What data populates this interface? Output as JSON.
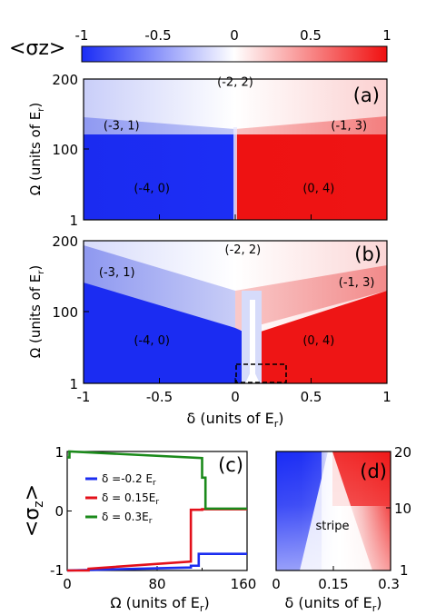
{
  "figure": {
    "colorbar": {
      "label": "<σz>",
      "ticks": [
        "-1",
        "-0.5",
        "0",
        "0.5",
        "1"
      ],
      "range": [
        -1,
        1
      ],
      "colors": {
        "neg": "#1a2cf5",
        "mid": "#ffffff",
        "pos": "#f01010"
      }
    },
    "panels": {
      "a": {
        "tag": "(a)",
        "ylabel": "Ω (units of E",
        "ylabel_sub": "r",
        "ylabel_end": ")",
        "ytick_labels": [
          "200",
          "100",
          "1"
        ]
      },
      "b": {
        "tag": "(b)",
        "ylabel": "Ω (units of E",
        "ylabel_sub": "r",
        "ylabel_end": ")",
        "ytick_labels": [
          "200",
          "100",
          "1"
        ],
        "xlabel": "δ (units of E",
        "xlabel_sub": "r",
        "xlabel_end": ")",
        "xtick_labels": [
          "-1",
          "-0.5",
          "0",
          "0.5",
          "1"
        ]
      },
      "c": {
        "tag": "(c)",
        "ylabel": "<σ",
        "ylabel_sub": "z",
        "ylabel_end": ">",
        "xlabel": "Ω (units of E",
        "xlabel_sub": "r",
        "xlabel_end": ")",
        "xtick_labels": [
          "0",
          "80",
          "160"
        ],
        "ytick_labels": [
          "1",
          "0",
          "-1"
        ]
      },
      "d": {
        "tag": "(d)",
        "region_label": "stripe",
        "xlabel": "δ (units of E",
        "xlabel_sub": "r",
        "xlabel_end": ")",
        "xtick_labels": [
          "0",
          "0.15",
          "0.3"
        ],
        "ytick_labels": [
          "20",
          "10",
          "1"
        ]
      }
    }
  },
  "chart_data": [
    {
      "panel": "a",
      "type": "heatmap",
      "x_range": [
        -1,
        1
      ],
      "y_ticks": [
        1,
        100,
        200
      ],
      "y_range": [
        1,
        200
      ],
      "regions": [
        {
          "label": "(-2, 2)",
          "delta": 0.0,
          "omega": 190,
          "value": 0.0
        },
        {
          "label": "(-3, 1)",
          "delta": -0.75,
          "omega": 128,
          "value": -0.3
        },
        {
          "label": "(-1, 3)",
          "delta": 0.75,
          "omega": 128,
          "value": 0.3
        },
        {
          "label": "(-4, 0)",
          "delta": -0.55,
          "omega": 40,
          "value": -1
        },
        {
          "label": "(0, 4)",
          "delta": 0.55,
          "omega": 40,
          "value": 1
        }
      ]
    },
    {
      "panel": "b",
      "type": "heatmap",
      "x_range": [
        -1,
        1
      ],
      "y_ticks": [
        1,
        100,
        200
      ],
      "y_range": [
        1,
        200
      ],
      "regions": [
        {
          "label": "(-2, 2)",
          "delta": 0.05,
          "omega": 182,
          "value": 0.0
        },
        {
          "label": "(-3, 1)",
          "delta": -0.78,
          "omega": 150,
          "value": -0.3
        },
        {
          "label": "(-1, 3)",
          "delta": 0.8,
          "omega": 136,
          "value": 0.3
        },
        {
          "label": "(-4, 0)",
          "delta": -0.55,
          "omega": 55,
          "value": -1
        },
        {
          "label": "(0, 4)",
          "delta": 0.55,
          "omega": 55,
          "value": 1
        }
      ],
      "highlight_box": {
        "delta": [
          0.0,
          0.33
        ],
        "omega": [
          1,
          20
        ]
      }
    },
    {
      "panel": "c",
      "type": "line",
      "x_range": [
        0,
        160
      ],
      "y_range": [
        -1,
        1
      ],
      "series": [
        {
          "name": "δ =-0.2 E",
          "name_sub": "r",
          "color": "#1b2df0",
          "x": [
            0,
            110,
            110,
            117,
            117,
            160
          ],
          "y": [
            -1.0,
            -0.95,
            -0.92,
            -0.92,
            -0.72,
            -0.72
          ]
        },
        {
          "name": "δ = 0.15E",
          "name_sub": "r",
          "color": "#e3101a",
          "x": [
            0,
            19,
            19,
            110,
            110,
            120,
            120,
            160
          ],
          "y": [
            -1.0,
            -1.0,
            -0.97,
            -0.85,
            0.02,
            0.02,
            0.03,
            0.03
          ]
        },
        {
          "name": "δ = 0.3E",
          "name_sub": "r",
          "color": "#1b8a1b",
          "x": [
            0,
            2,
            2,
            120,
            120,
            123,
            123,
            160
          ],
          "y": [
            0.9,
            0.9,
            1.0,
            0.89,
            0.56,
            0.56,
            0.04,
            0.04
          ]
        }
      ]
    },
    {
      "panel": "d",
      "type": "heatmap",
      "x_range": [
        0,
        0.3
      ],
      "y_range": [
        1,
        20
      ],
      "y_ticks": [
        1,
        10,
        20
      ],
      "regions": [
        {
          "label": "stripe",
          "delta": 0.15,
          "omega": 6,
          "value": 0.0
        }
      ]
    }
  ]
}
